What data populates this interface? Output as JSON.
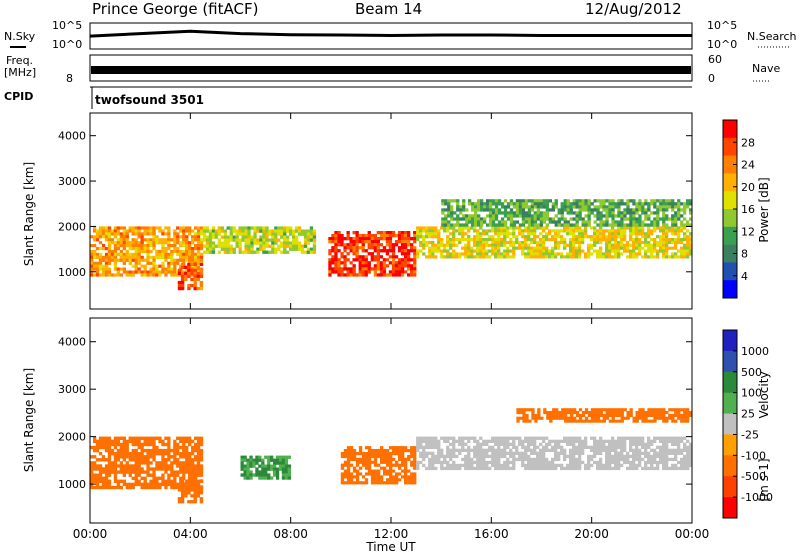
{
  "header": {
    "station": "Prince George (fitACF)",
    "beam": "Beam 14",
    "date": "12/Aug/2012"
  },
  "noise_panel": {
    "left_label": "N.Sky",
    "left_ticks": [
      "10^5",
      "10^0"
    ],
    "right_ticks": [
      "10^5",
      "10^0"
    ],
    "right_label": "N.Search"
  },
  "freq_panel": {
    "left_label_1": "Freq.",
    "left_label_2": "[MHz]",
    "left_ticks": [
      "8"
    ],
    "right_ticks": [
      "60",
      "0"
    ],
    "right_label": "Nave"
  },
  "cpid_panel": {
    "label": "CPID",
    "program": "twofsound 3501"
  },
  "time_axis": {
    "ticks": [
      "00:00",
      "04:00",
      "08:00",
      "12:00",
      "16:00",
      "20:00",
      "00:00"
    ],
    "label": "Time UT"
  },
  "power_colorbar": {
    "label": "Power [dB]",
    "ticks": [
      "28",
      "24",
      "20",
      "16",
      "12",
      "8",
      "4"
    ],
    "colors": [
      "#ff0000",
      "#ff4400",
      "#ff8000",
      "#ffb000",
      "#e0e000",
      "#90c830",
      "#3aa050",
      "#3a8060",
      "#2050b0",
      "#0000ff"
    ]
  },
  "velocity_colorbar": {
    "label": "Velocity",
    "units": "[m s-1]",
    "ticks": [
      "1000",
      "500",
      "100",
      "25",
      "-25",
      "-100",
      "-500",
      "-1000"
    ],
    "colors": [
      "#2020c0",
      "#3050b0",
      "#2a8a3a",
      "#50b050",
      "#c0c0c0",
      "#ffa000",
      "#ff7000",
      "#ff4000",
      "#ff0000"
    ]
  },
  "chart_data": [
    {
      "type": "line",
      "title": "N.Sky / N.Search",
      "yscale": "log",
      "ylim": [
        1,
        100000
      ],
      "x": [
        "00:00",
        "02:00",
        "04:00",
        "06:00",
        "08:00",
        "10:00",
        "12:00",
        "14:00",
        "16:00",
        "18:00",
        "20:00",
        "22:00",
        "00:00"
      ],
      "series": [
        {
          "name": "N.Sky",
          "values": [
            300,
            1000,
            3000,
            1000,
            600,
            500,
            400,
            500,
            500,
            400,
            400,
            400,
            400
          ]
        }
      ]
    },
    {
      "type": "line",
      "title": "Freq. / Nave",
      "ylim": [
        0,
        60
      ],
      "x": [
        "00:00",
        "24:00"
      ],
      "series": [
        {
          "name": "Freq.",
          "values": [
            10,
            10
          ]
        }
      ]
    },
    {
      "type": "heatmap",
      "ylabel": "Slant Range [km]",
      "xlabel": "Time UT",
      "xlim": [
        "00:00",
        "24:00"
      ],
      "ylim": [
        180,
        4500
      ],
      "yticks": [
        "1000",
        "2000",
        "3000",
        "4000"
      ],
      "value_label": "Power [dB]",
      "regions": [
        {
          "t": [
            0,
            4.5
          ],
          "range": [
            900,
            2000
          ],
          "value": 20
        },
        {
          "t": [
            3.5,
            4.5
          ],
          "range": [
            600,
            1200
          ],
          "value": 24
        },
        {
          "t": [
            4.5,
            9
          ],
          "range": [
            1400,
            2000
          ],
          "value": 14
        },
        {
          "t": [
            9.5,
            13
          ],
          "range": [
            900,
            1900
          ],
          "value": 26
        },
        {
          "t": [
            13,
            24
          ],
          "range": [
            1300,
            2000
          ],
          "value": 16
        },
        {
          "t": [
            14,
            24
          ],
          "range": [
            2000,
            2600
          ],
          "value": 10
        }
      ]
    },
    {
      "type": "heatmap",
      "ylabel": "Slant Range [km]",
      "xlabel": "Time UT",
      "xlim": [
        "00:00",
        "24:00"
      ],
      "ylim": [
        180,
        4500
      ],
      "yticks": [
        "1000",
        "2000",
        "3000",
        "4000"
      ],
      "value_label": "Velocity [m s-1]",
      "regions": [
        {
          "t": [
            0,
            4.5
          ],
          "range": [
            900,
            2000
          ],
          "value": -150
        },
        {
          "t": [
            3.5,
            4.5
          ],
          "range": [
            600,
            1100
          ],
          "value": -150
        },
        {
          "t": [
            6,
            8
          ],
          "range": [
            1100,
            1600
          ],
          "value": 100
        },
        {
          "t": [
            10,
            13
          ],
          "range": [
            1000,
            1800
          ],
          "value": -300
        },
        {
          "t": [
            13,
            24
          ],
          "range": [
            1300,
            2000
          ],
          "value": 0
        },
        {
          "t": [
            17,
            24
          ],
          "range": [
            2300,
            2600
          ],
          "value": -300
        }
      ]
    }
  ]
}
